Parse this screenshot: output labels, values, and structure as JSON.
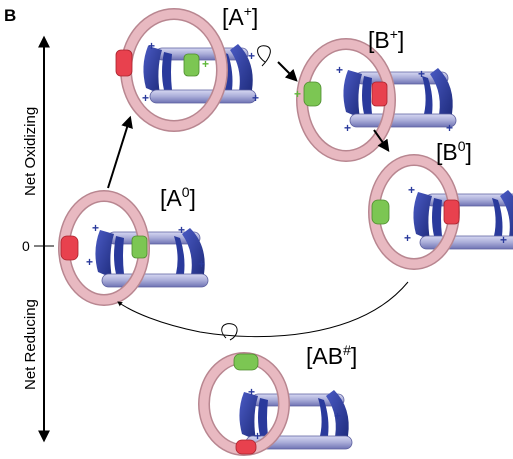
{
  "panel_letter": "B",
  "axis": {
    "top_label": "Net Oxidizing",
    "bottom_label": "Net Reducing",
    "zero_label": "0"
  },
  "states": [
    {
      "id": "A+",
      "base": "[A",
      "sup": "+",
      "close": "]"
    },
    {
      "id": "B+",
      "base": "[B",
      "sup": "+",
      "close": "]"
    },
    {
      "id": "B0",
      "base": "[B",
      "sup": "0",
      "close": "]"
    },
    {
      "id": "A0",
      "base": "[A",
      "sup": "0",
      "close": "]"
    },
    {
      "id": "AB#",
      "base": "[AB",
      "sup": "#",
      "close": "]"
    }
  ],
  "colors": {
    "ring": "#e8b9c1",
    "ring_shadow": "#b88690",
    "cyclophane_blue": "#2a3a9c",
    "cyclophane_bar": "#a9acd8",
    "station_red": "#e8414e",
    "station_green": "#7cc653",
    "charge_plus_blue": "#2a3a9c",
    "charge_plus_green": "#5fb83a",
    "arrow": "#000000"
  }
}
